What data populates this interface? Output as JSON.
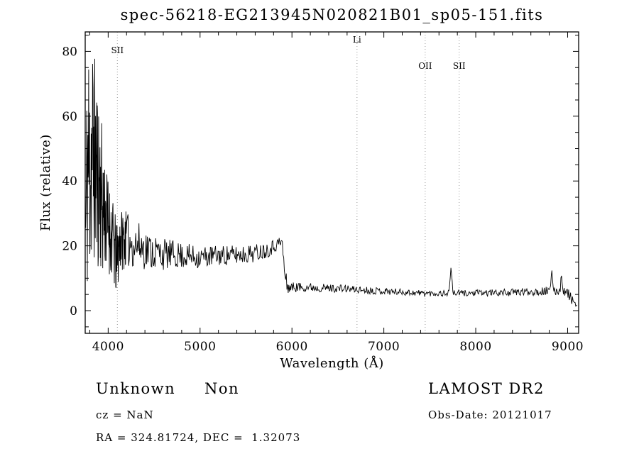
{
  "chart_data": {
    "type": "line",
    "title": "spec-56218-EG213945N020821B01_sp05-151.fits",
    "xlabel": "Wavelength (Å)",
    "ylabel": "Flux (relative)",
    "xlim": [
      3750,
      9120
    ],
    "ylim": [
      -7,
      86
    ],
    "xticks": [
      4000,
      5000,
      6000,
      7000,
      8000,
      9000
    ],
    "yticks": [
      0,
      20,
      40,
      60,
      80
    ],
    "x_minor_step": 200,
    "y_minor_step": 5,
    "grid": false,
    "legend": "none",
    "line_color": "#000000",
    "spectral_line_color": "#999999",
    "spectral_lines": [
      {
        "label": "SII",
        "wavelength": 4100,
        "label_dy": 30
      },
      {
        "label": "Li",
        "wavelength": 6708,
        "label_dy": 15
      },
      {
        "label": "OII",
        "wavelength": 7450,
        "label_dy": 52
      },
      {
        "label": "SII",
        "wavelength": 7820,
        "label_dy": 52
      }
    ],
    "series_name": "flux",
    "noise_seed": 11,
    "spectrum_envelope": [
      [
        3755,
        25,
        25
      ],
      [
        3775,
        45,
        42
      ],
      [
        3800,
        46,
        42
      ],
      [
        3830,
        50,
        38
      ],
      [
        3860,
        45,
        32
      ],
      [
        3900,
        40,
        28
      ],
      [
        3940,
        33,
        22
      ],
      [
        3980,
        28,
        17
      ],
      [
        4020,
        25,
        14
      ],
      [
        4060,
        20,
        13
      ],
      [
        4090,
        15,
        12
      ],
      [
        4130,
        22,
        10
      ],
      [
        4180,
        22,
        9
      ],
      [
        4250,
        21,
        8
      ],
      [
        4350,
        20,
        7
      ],
      [
        4450,
        18.5,
        6
      ],
      [
        4600,
        17.5,
        5
      ],
      [
        4800,
        17,
        4
      ],
      [
        5000,
        16.5,
        3.5
      ],
      [
        5200,
        17,
        3.2
      ],
      [
        5400,
        17.2,
        3
      ],
      [
        5600,
        17.8,
        2.8
      ],
      [
        5750,
        19,
        2.4
      ],
      [
        5860,
        21,
        2
      ],
      [
        5895,
        21,
        2
      ],
      [
        5915,
        13,
        4
      ],
      [
        5945,
        7.5,
        2.5
      ],
      [
        5990,
        7.2,
        1.6
      ],
      [
        6150,
        7.3,
        1.4
      ],
      [
        6350,
        7,
        1.3
      ],
      [
        6550,
        6.8,
        1.2
      ],
      [
        6750,
        6.4,
        1.1
      ],
      [
        6950,
        6.1,
        1.1
      ],
      [
        7150,
        5.8,
        1.0
      ],
      [
        7350,
        5.5,
        1.0
      ],
      [
        7550,
        5.3,
        0.9
      ],
      [
        7750,
        5.4,
        1.0
      ],
      [
        7950,
        5.4,
        1.0
      ],
      [
        8150,
        5.5,
        1.0
      ],
      [
        8350,
        5.6,
        1.1
      ],
      [
        8550,
        5.8,
        1.2
      ],
      [
        8750,
        6.0,
        1.3
      ],
      [
        8900,
        6.2,
        1.4
      ],
      [
        9000,
        5.5,
        1.5
      ],
      [
        9060,
        3.0,
        1.5
      ],
      [
        9105,
        1.0,
        1.0
      ]
    ],
    "emission_peaks": [
      [
        7730,
        7.5,
        10
      ],
      [
        8830,
        5.5,
        8
      ],
      [
        8935,
        5.0,
        8
      ]
    ]
  },
  "annotations": {
    "class_label": "Unknown",
    "subclass_label": "Non",
    "survey": "LAMOST DR2",
    "cz": "cz = NaN",
    "obs_date": "Obs-Date: 20121017",
    "ra_dec": "RA = 324.81724, DEC =  1.32073"
  }
}
